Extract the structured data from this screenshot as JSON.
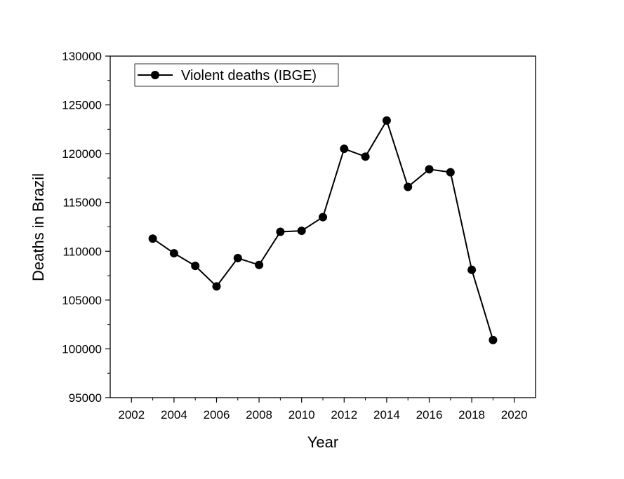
{
  "chart_data": {
    "type": "line",
    "xlabel": "Year",
    "ylabel": "Deaths in Brazil",
    "xlim": [
      2001,
      2021
    ],
    "ylim": [
      95000,
      130000
    ],
    "xticks": [
      2002,
      2004,
      2006,
      2008,
      2010,
      2012,
      2014,
      2016,
      2018,
      2020
    ],
    "yticks": [
      95000,
      100000,
      105000,
      110000,
      115000,
      120000,
      125000,
      130000
    ],
    "grid": false,
    "legend_position": "top-left",
    "series": [
      {
        "name": "Violent deaths (IBGE)",
        "color": "#000000",
        "marker": "circle",
        "x": [
          2003,
          2004,
          2005,
          2006,
          2007,
          2008,
          2009,
          2010,
          2011,
          2012,
          2013,
          2014,
          2015,
          2016,
          2017,
          2018,
          2019
        ],
        "y": [
          111300,
          109800,
          108500,
          106400,
          109300,
          108600,
          112000,
          112100,
          113500,
          120500,
          119700,
          123400,
          116600,
          118400,
          118100,
          108100,
          100900
        ]
      }
    ]
  }
}
